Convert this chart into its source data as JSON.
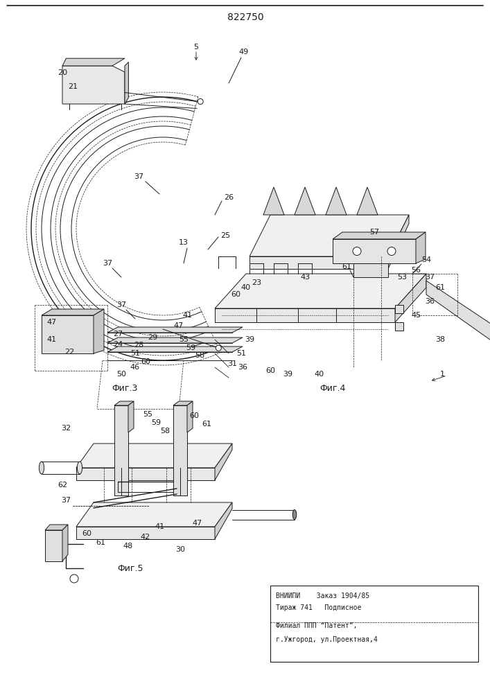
{
  "bg_color": "#f5f5f0",
  "line_color": "#1a1a1a",
  "title": "822750",
  "fig3_label": "Фиг.3",
  "fig4_label": "Фиг.4",
  "fig5_label": "Фиг.5",
  "footer_line1": "ВНИИПИ    Заказ 1904/85",
  "footer_line2": "Тираж 741   Подписное",
  "footer_line3": "Филиал ППП “Патент”,",
  "footer_line4": "г.Ужгород, ул.Проектная,4"
}
